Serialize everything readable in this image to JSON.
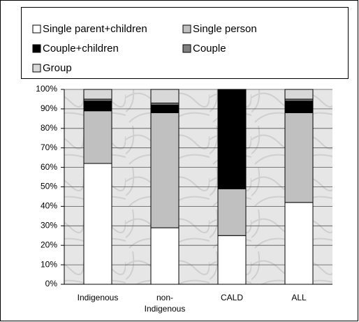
{
  "chart_data": {
    "type": "stacked_bar",
    "categories": [
      "Indigenous",
      "non-Indigenous",
      "CALD",
      "ALL"
    ],
    "series": [
      {
        "name": "Single parent+children",
        "color": "#ffffff",
        "values": [
          62,
          29,
          25,
          42
        ]
      },
      {
        "name": "Single person",
        "color": "#c0c0c0",
        "values": [
          27,
          59,
          24,
          46
        ]
      },
      {
        "name": "Couple+children",
        "color": "#000000",
        "values": [
          5,
          4,
          51,
          6
        ]
      },
      {
        "name": "Couple",
        "color": "#808080",
        "values": [
          1,
          1,
          0,
          1
        ]
      },
      {
        "name": "Group",
        "color": "#d8d8d8",
        "values": [
          5,
          7,
          0,
          5
        ]
      }
    ],
    "ylim": [
      0,
      100
    ],
    "yticks": [
      {
        "value": 0,
        "label": "0%"
      },
      {
        "value": 10,
        "label": "10%"
      },
      {
        "value": 20,
        "label": "20%"
      },
      {
        "value": 30,
        "label": "30%"
      },
      {
        "value": 40,
        "label": "40%"
      },
      {
        "value": 50,
        "label": "50%"
      },
      {
        "value": 60,
        "label": "60%"
      },
      {
        "value": 70,
        "label": "70%"
      },
      {
        "value": 80,
        "label": "80%"
      },
      {
        "value": 90,
        "label": "90%"
      },
      {
        "value": 100,
        "label": "100%"
      }
    ],
    "grid": true
  }
}
